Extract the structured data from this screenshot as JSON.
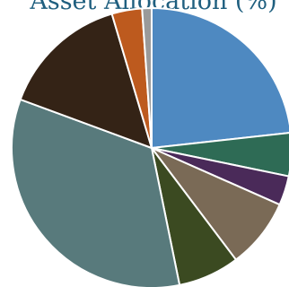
{
  "chart_data": {
    "type": "pie",
    "title": "Asset Allocation (%)",
    "slices": [
      {
        "value": 23.3,
        "color": "#4e89c1"
      },
      {
        "value": 5.0,
        "color": "#2e6b55"
      },
      {
        "value": 3.4,
        "color": "#4a2a59"
      },
      {
        "value": 8.1,
        "color": "#7a6a56"
      },
      {
        "value": 7.1,
        "color": "#3b4a21"
      },
      {
        "value": 33.9,
        "color": "#587a7c"
      },
      {
        "value": 14.8,
        "color": "#342316"
      },
      {
        "value": 3.5,
        "color": "#bd5a1e"
      },
      {
        "value": 1.1,
        "color": "#9a9a9a"
      }
    ]
  }
}
